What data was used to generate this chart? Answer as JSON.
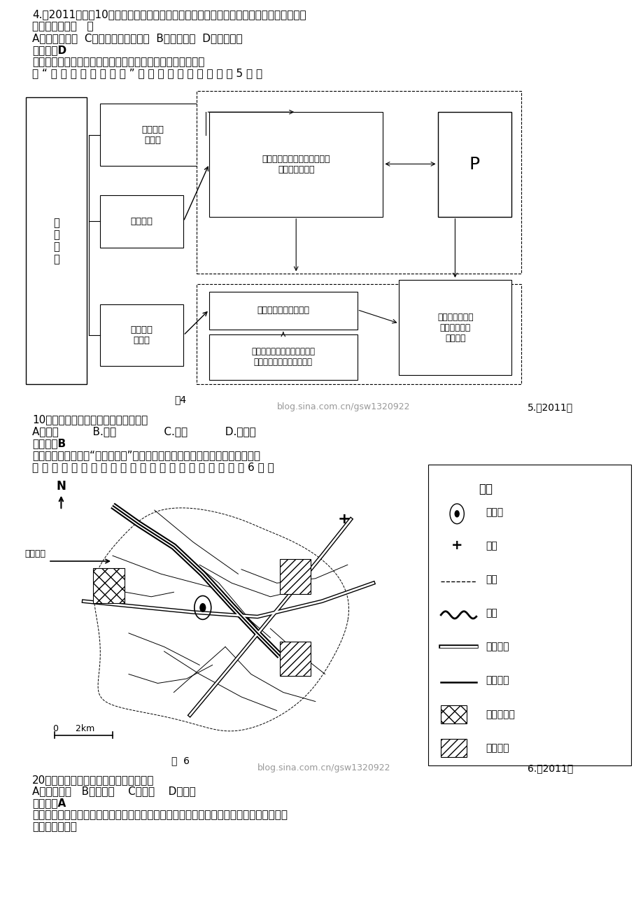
{
  "bg_color": "#ffffff",
  "q4_lines": [
    "4.（2011地理，10）主导区位因素在工业区位选择中起决定作用。水产品加工业的主导区",
    "位因素是接近（   ）",
    "A．劳动力市场  C．技术条件好的企业  B．消费市场  D．原料产地",
    "【答案】D",
    "【解析】水产品易腔烂变质，因此其加工厂应接近原料产地。",
    "读 “ 汽 车 产 业 链 结 构 图 ” ， 结 合 所 学 知 识 ， 完 成 5 题 。"
  ],
  "q5_lines": [
    "10）影响汽车服务业布局的主导因素是",
    "A．原料          B.市场              C.动力           D.劳动力",
    "【答案】B",
    "【解析】抓住关键词“汽车服务业”可知，影响汽车服务业布局的主导因素市场。",
    "下 图 示 意 某 城 市 交 通 、 工 业 区 的 分 布 。 读 图 ， 完 成 6 题 。"
  ],
  "q6_lines": [
    "20）该城市新工业区的区位优势在于接近",
    "A．高速公路   B．市中心    C．运河    D．机场",
    "【答案】A",
    "【解析】由图可知，该城市新工业区附近有高速公路，因此该城市新工业区的区位优势在于",
    "接近高速公路。"
  ]
}
